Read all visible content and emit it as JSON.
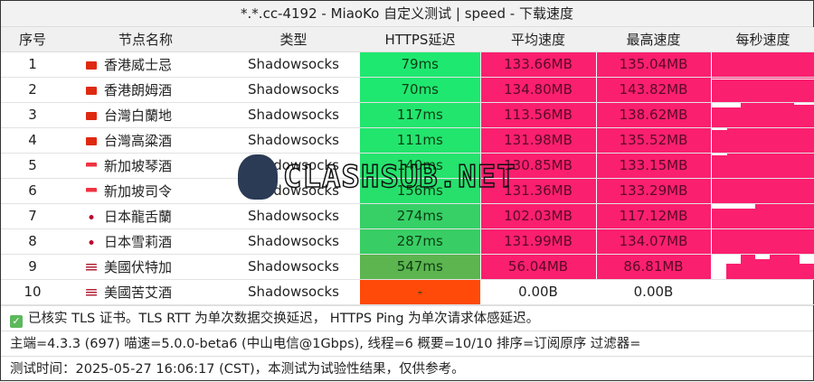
{
  "title": "*.*.cc-4192 - MiaoKo 自定义测试 | speed - 下载速度",
  "headers": [
    "序号",
    "节点名称",
    "类型",
    "HTTPS延迟",
    "平均速度",
    "最高速度",
    "每秒速度"
  ],
  "colors": {
    "speed": "#fb1f6f",
    "latency_fast": "#1fe870",
    "latency_mid": "#3ccf64",
    "latency_slow": "#5cb54f",
    "latency_fail": "#ff4a0a"
  },
  "rows": [
    {
      "idx": "1",
      "flag": "hk-flag-icon",
      "name": "香港威士忌",
      "type": "Shadowsocks",
      "latency": "79ms",
      "avg": "133.66MB",
      "max": "135.04MB",
      "lc": "#1fe870"
    },
    {
      "idx": "2",
      "flag": "hk-flag-icon",
      "name": "香港朗姆酒",
      "type": "Shadowsocks",
      "latency": "70ms",
      "avg": "134.80MB",
      "max": "143.82MB",
      "lc": "#1fe870"
    },
    {
      "idx": "3",
      "flag": "cn-flag-icon",
      "name": "台灣白蘭地",
      "type": "Shadowsocks",
      "latency": "117ms",
      "avg": "113.56MB",
      "max": "138.62MB",
      "lc": "#22e56e"
    },
    {
      "idx": "4",
      "flag": "cn-flag-icon",
      "name": "台灣高粱酒",
      "type": "Shadowsocks",
      "latency": "111ms",
      "avg": "131.98MB",
      "max": "135.52MB",
      "lc": "#22e56e"
    },
    {
      "idx": "5",
      "flag": "sg-flag-icon",
      "name": "新加坡琴酒",
      "type": "Shadowsocks",
      "latency": "140ms",
      "avg": "130.85MB",
      "max": "133.15MB",
      "lc": "#25e36d"
    },
    {
      "idx": "6",
      "flag": "sg-flag-icon",
      "name": "新加坡司令",
      "type": "Shadowsocks",
      "latency": "156ms",
      "avg": "131.36MB",
      "max": "133.29MB",
      "lc": "#27e06c"
    },
    {
      "idx": "7",
      "flag": "jp-flag-icon",
      "name": "日本龍舌蘭",
      "type": "Shadowsocks",
      "latency": "274ms",
      "avg": "102.03MB",
      "max": "117.12MB",
      "lc": "#36d066"
    },
    {
      "idx": "8",
      "flag": "jp-flag-icon",
      "name": "日本雪莉酒",
      "type": "Shadowsocks",
      "latency": "287ms",
      "avg": "131.99MB",
      "max": "134.07MB",
      "lc": "#38ce65"
    },
    {
      "idx": "9",
      "flag": "us-flag-icon",
      "name": "美國伏特加",
      "type": "Shadowsocks",
      "latency": "547ms",
      "avg": "56.04MB",
      "max": "86.81MB",
      "lc": "#5cb54f"
    },
    {
      "idx": "10",
      "flag": "us-flag-icon",
      "name": "美國苦艾酒",
      "type": "Shadowsocks",
      "latency": "-",
      "avg": "0.00B",
      "max": "0.00B",
      "lc": "#ff4a0a"
    }
  ],
  "footer": {
    "line1": "已核实 TLS 证书。TLS RTT 为单次数据交换延迟， HTTPS Ping 为单次请求体感延迟。",
    "line2": "主端=4.3.3 (697) 喵速=5.0.0-beta6 (中山电信@1Gbps), 线程=6 概要=10/10 排序=订阅原序 过滤器=",
    "line3": "测试时间：2025-05-27 16:06:17 (CST)，本测试为试验性结果，仅供参考。"
  },
  "watermark": "CLASHSUB.NET"
}
